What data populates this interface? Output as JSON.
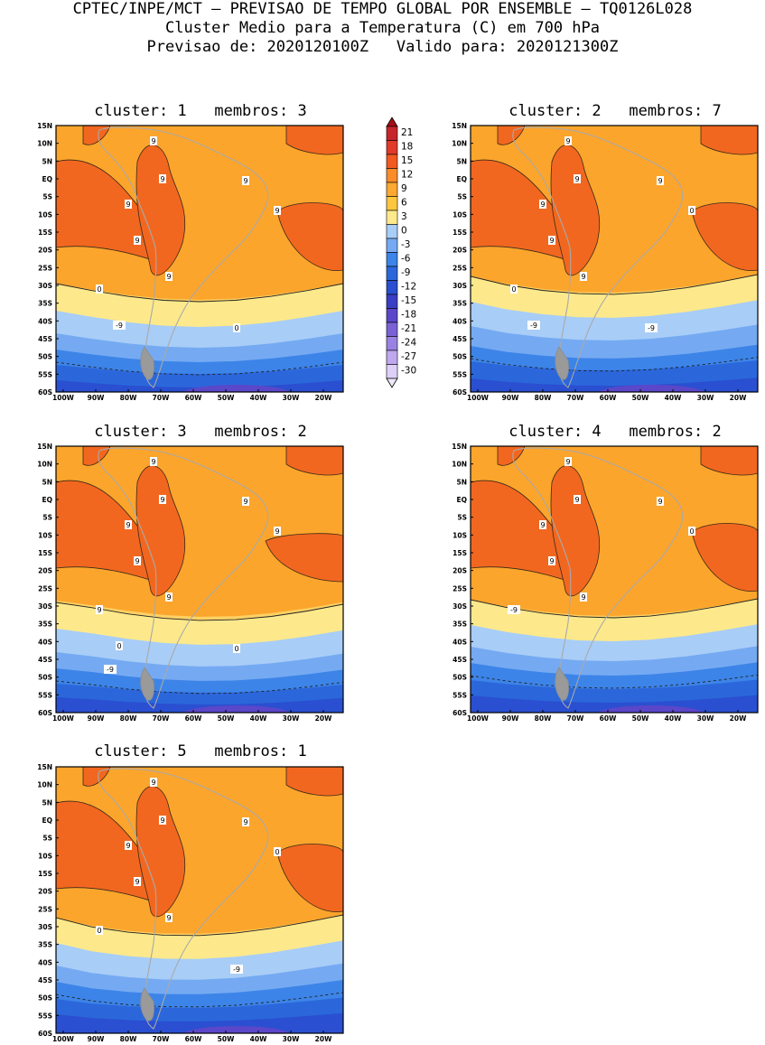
{
  "header": {
    "line1": "CPTEC/INPE/MCT – PREVISAO DE TEMPO GLOBAL POR ENSEMBLE – TQ0126L028",
    "line2": "Cluster Medio para a Temperatura (C) em 700 hPa",
    "line3": "Previsao de: 2020120100Z   Valido para: 2020121300Z"
  },
  "axes": {
    "lat_labels": [
      "15N",
      "10N",
      "5N",
      "EQ",
      "5S",
      "10S",
      "15S",
      "20S",
      "25S",
      "30S",
      "35S",
      "40S",
      "45S",
      "50S",
      "55S",
      "60S"
    ],
    "lon_labels": [
      "100W",
      "90W",
      "80W",
      "70W",
      "60W",
      "50W",
      "40W",
      "30W",
      "20W"
    ]
  },
  "colorbar": {
    "labels": [
      "21",
      "18",
      "15",
      "12",
      "9",
      "6",
      "3",
      "0",
      "-3",
      "-6",
      "-9",
      "-12",
      "-15",
      "-18",
      "-21",
      "-24",
      "-27",
      "-30"
    ],
    "colors": [
      "#a50f15",
      "#c6262b",
      "#e03a2a",
      "#f25a20",
      "#fb8c2a",
      "#fca831",
      "#fcc73e",
      "#fde98b",
      "#a8cdf7",
      "#75aaf2",
      "#3d84e8",
      "#2b67db",
      "#2a4fd0",
      "#3b3ec4",
      "#5b47c9",
      "#7a62d6",
      "#9a82e2",
      "#bfa8ef",
      "#ddd0f7"
    ]
  },
  "maps": [
    {
      "title": "cluster: 1   membros: 3",
      "contour_labels": [
        "9",
        "9",
        "9",
        "9",
        "9",
        "9",
        "9",
        "0",
        "0",
        "-9"
      ]
    },
    {
      "title": "cluster: 2   membros: 7",
      "contour_labels": [
        "9",
        "9",
        "9",
        "9",
        "9",
        "9",
        "0",
        "0",
        "-9",
        "-9"
      ]
    },
    {
      "title": "cluster: 3   membros: 2",
      "contour_labels": [
        "9",
        "9",
        "9",
        "9",
        "9",
        "9",
        "9",
        "9",
        "0",
        "0",
        "-9"
      ]
    },
    {
      "title": "cluster: 4   membros: 2",
      "contour_labels": [
        "9",
        "9",
        "9",
        "9",
        "9",
        "9",
        "0",
        "-9"
      ]
    },
    {
      "title": "cluster: 5   membros: 1",
      "contour_labels": [
        "9",
        "9",
        "9",
        "9",
        "9",
        "9",
        "0",
        "0",
        "-9"
      ]
    }
  ]
}
